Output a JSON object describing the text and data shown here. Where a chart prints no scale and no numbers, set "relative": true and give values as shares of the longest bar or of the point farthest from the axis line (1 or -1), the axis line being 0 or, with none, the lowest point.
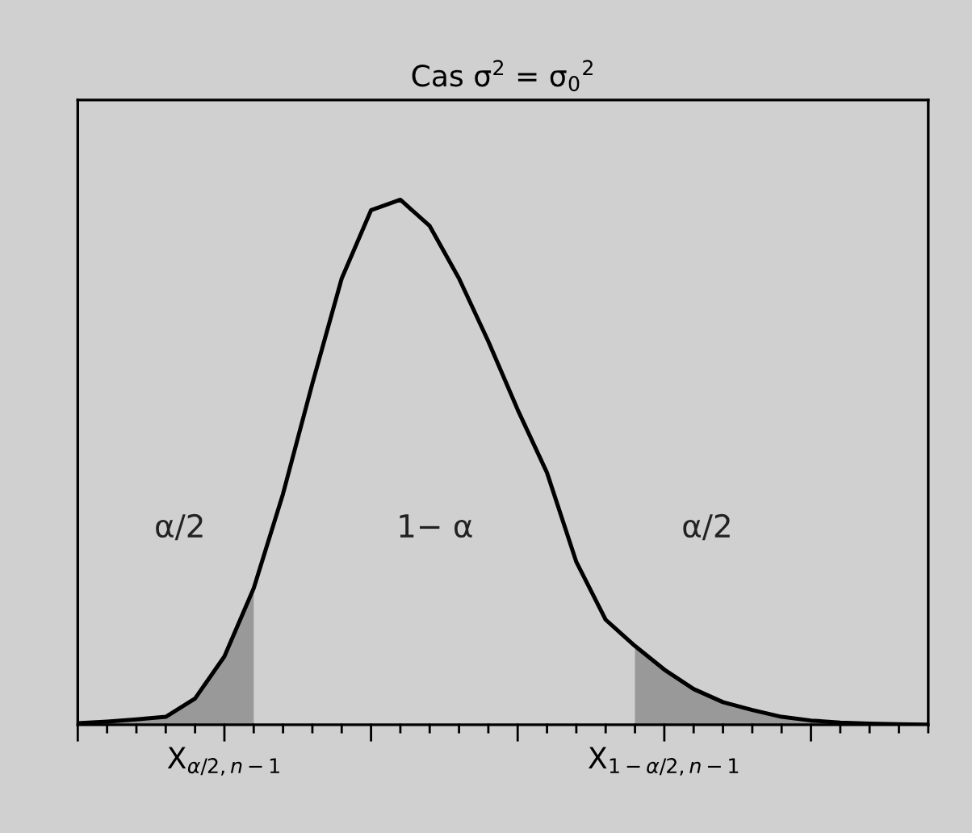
{
  "chart_data": {
    "type": "line",
    "title": "Cas σ$^{2}$ = σ$_{0}$$^{2}$",
    "relative": true,
    "tick_labels": "x",
    "categories": [
      null,
      null,
      null,
      null,
      null,
      "X$_{α/2,n−1}$",
      null,
      null,
      null,
      null,
      null,
      null,
      null,
      null,
      null,
      null,
      null,
      null,
      null,
      null,
      "X$_{1−α/2,n−1}$",
      null,
      null,
      null,
      null,
      null,
      null,
      null,
      null,
      null
    ],
    "series": [
      {
        "color": "#000000",
        "values": [
          0.003,
          0.006,
          0.01,
          0.015,
          0.05,
          0.13,
          0.26,
          0.44,
          0.65,
          0.85,
          0.98,
          1.0,
          0.95,
          0.85,
          0.73,
          0.6,
          0.48,
          0.31,
          0.2,
          0.15,
          0.105,
          0.068,
          0.043,
          0.028,
          0.015,
          0.008,
          0.004,
          0.002,
          0.001,
          0.0
        ]
      },
      {
        "type": "area",
        "color": "#999999",
        "values": [
          0.003,
          0.006,
          0.01,
          0.015,
          0.05,
          0.13,
          0.26,
          null,
          null,
          null,
          null,
          null,
          null,
          null,
          null,
          null,
          null,
          null,
          null,
          null,
          null,
          null,
          null,
          null,
          null,
          null,
          null,
          null,
          null,
          null
        ]
      },
      {
        "type": "area",
        "color": "#999999",
        "values": [
          null,
          null,
          null,
          null,
          null,
          null,
          null,
          null,
          null,
          null,
          null,
          null,
          null,
          null,
          null,
          null,
          null,
          null,
          null,
          0.15,
          0.105,
          0.068,
          0.043,
          0.028,
          0.015,
          0.008,
          0.004,
          0.002,
          0.001,
          0.0
        ]
      }
    ],
    "annotations": [
      "α/2",
      "1− α",
      "α/2"
    ]
  }
}
